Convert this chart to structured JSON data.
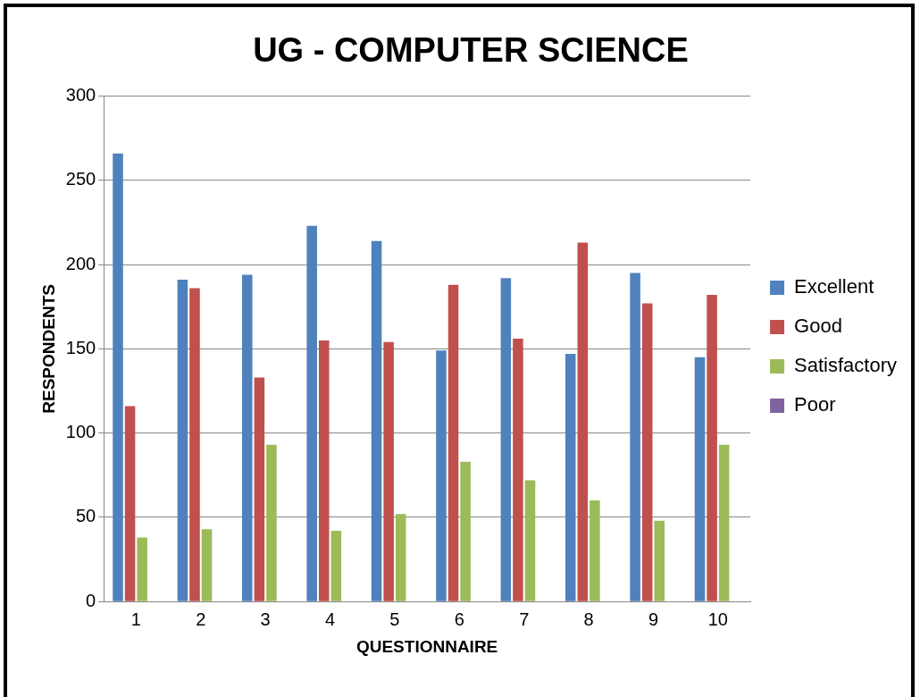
{
  "chart_data": {
    "type": "bar",
    "title": "UG - COMPUTER SCIENCE",
    "xlabel": "QUESTIONNAIRE",
    "ylabel": "RESPONDENTS",
    "categories": [
      "1",
      "2",
      "3",
      "4",
      "5",
      "6",
      "7",
      "8",
      "9",
      "10"
    ],
    "series": [
      {
        "name": "Excellent",
        "color": "#4f81bd",
        "values": [
          266,
          191,
          194,
          223,
          214,
          149,
          192,
          147,
          195,
          145
        ]
      },
      {
        "name": "Good",
        "color": "#c0504d",
        "values": [
          116,
          186,
          133,
          155,
          154,
          188,
          156,
          213,
          177,
          182
        ]
      },
      {
        "name": "Satisfactory",
        "color": "#9bbb59",
        "values": [
          38,
          43,
          93,
          42,
          52,
          83,
          72,
          60,
          48,
          93
        ]
      },
      {
        "name": "Poor",
        "color": "#8064a2",
        "values": [
          0,
          0,
          0,
          0,
          0,
          0,
          0,
          0,
          0,
          0
        ]
      }
    ],
    "ylim": [
      0,
      300
    ],
    "yticks": [
      0,
      50,
      100,
      150,
      200,
      250,
      300
    ],
    "grid": "y",
    "legend": "right"
  }
}
